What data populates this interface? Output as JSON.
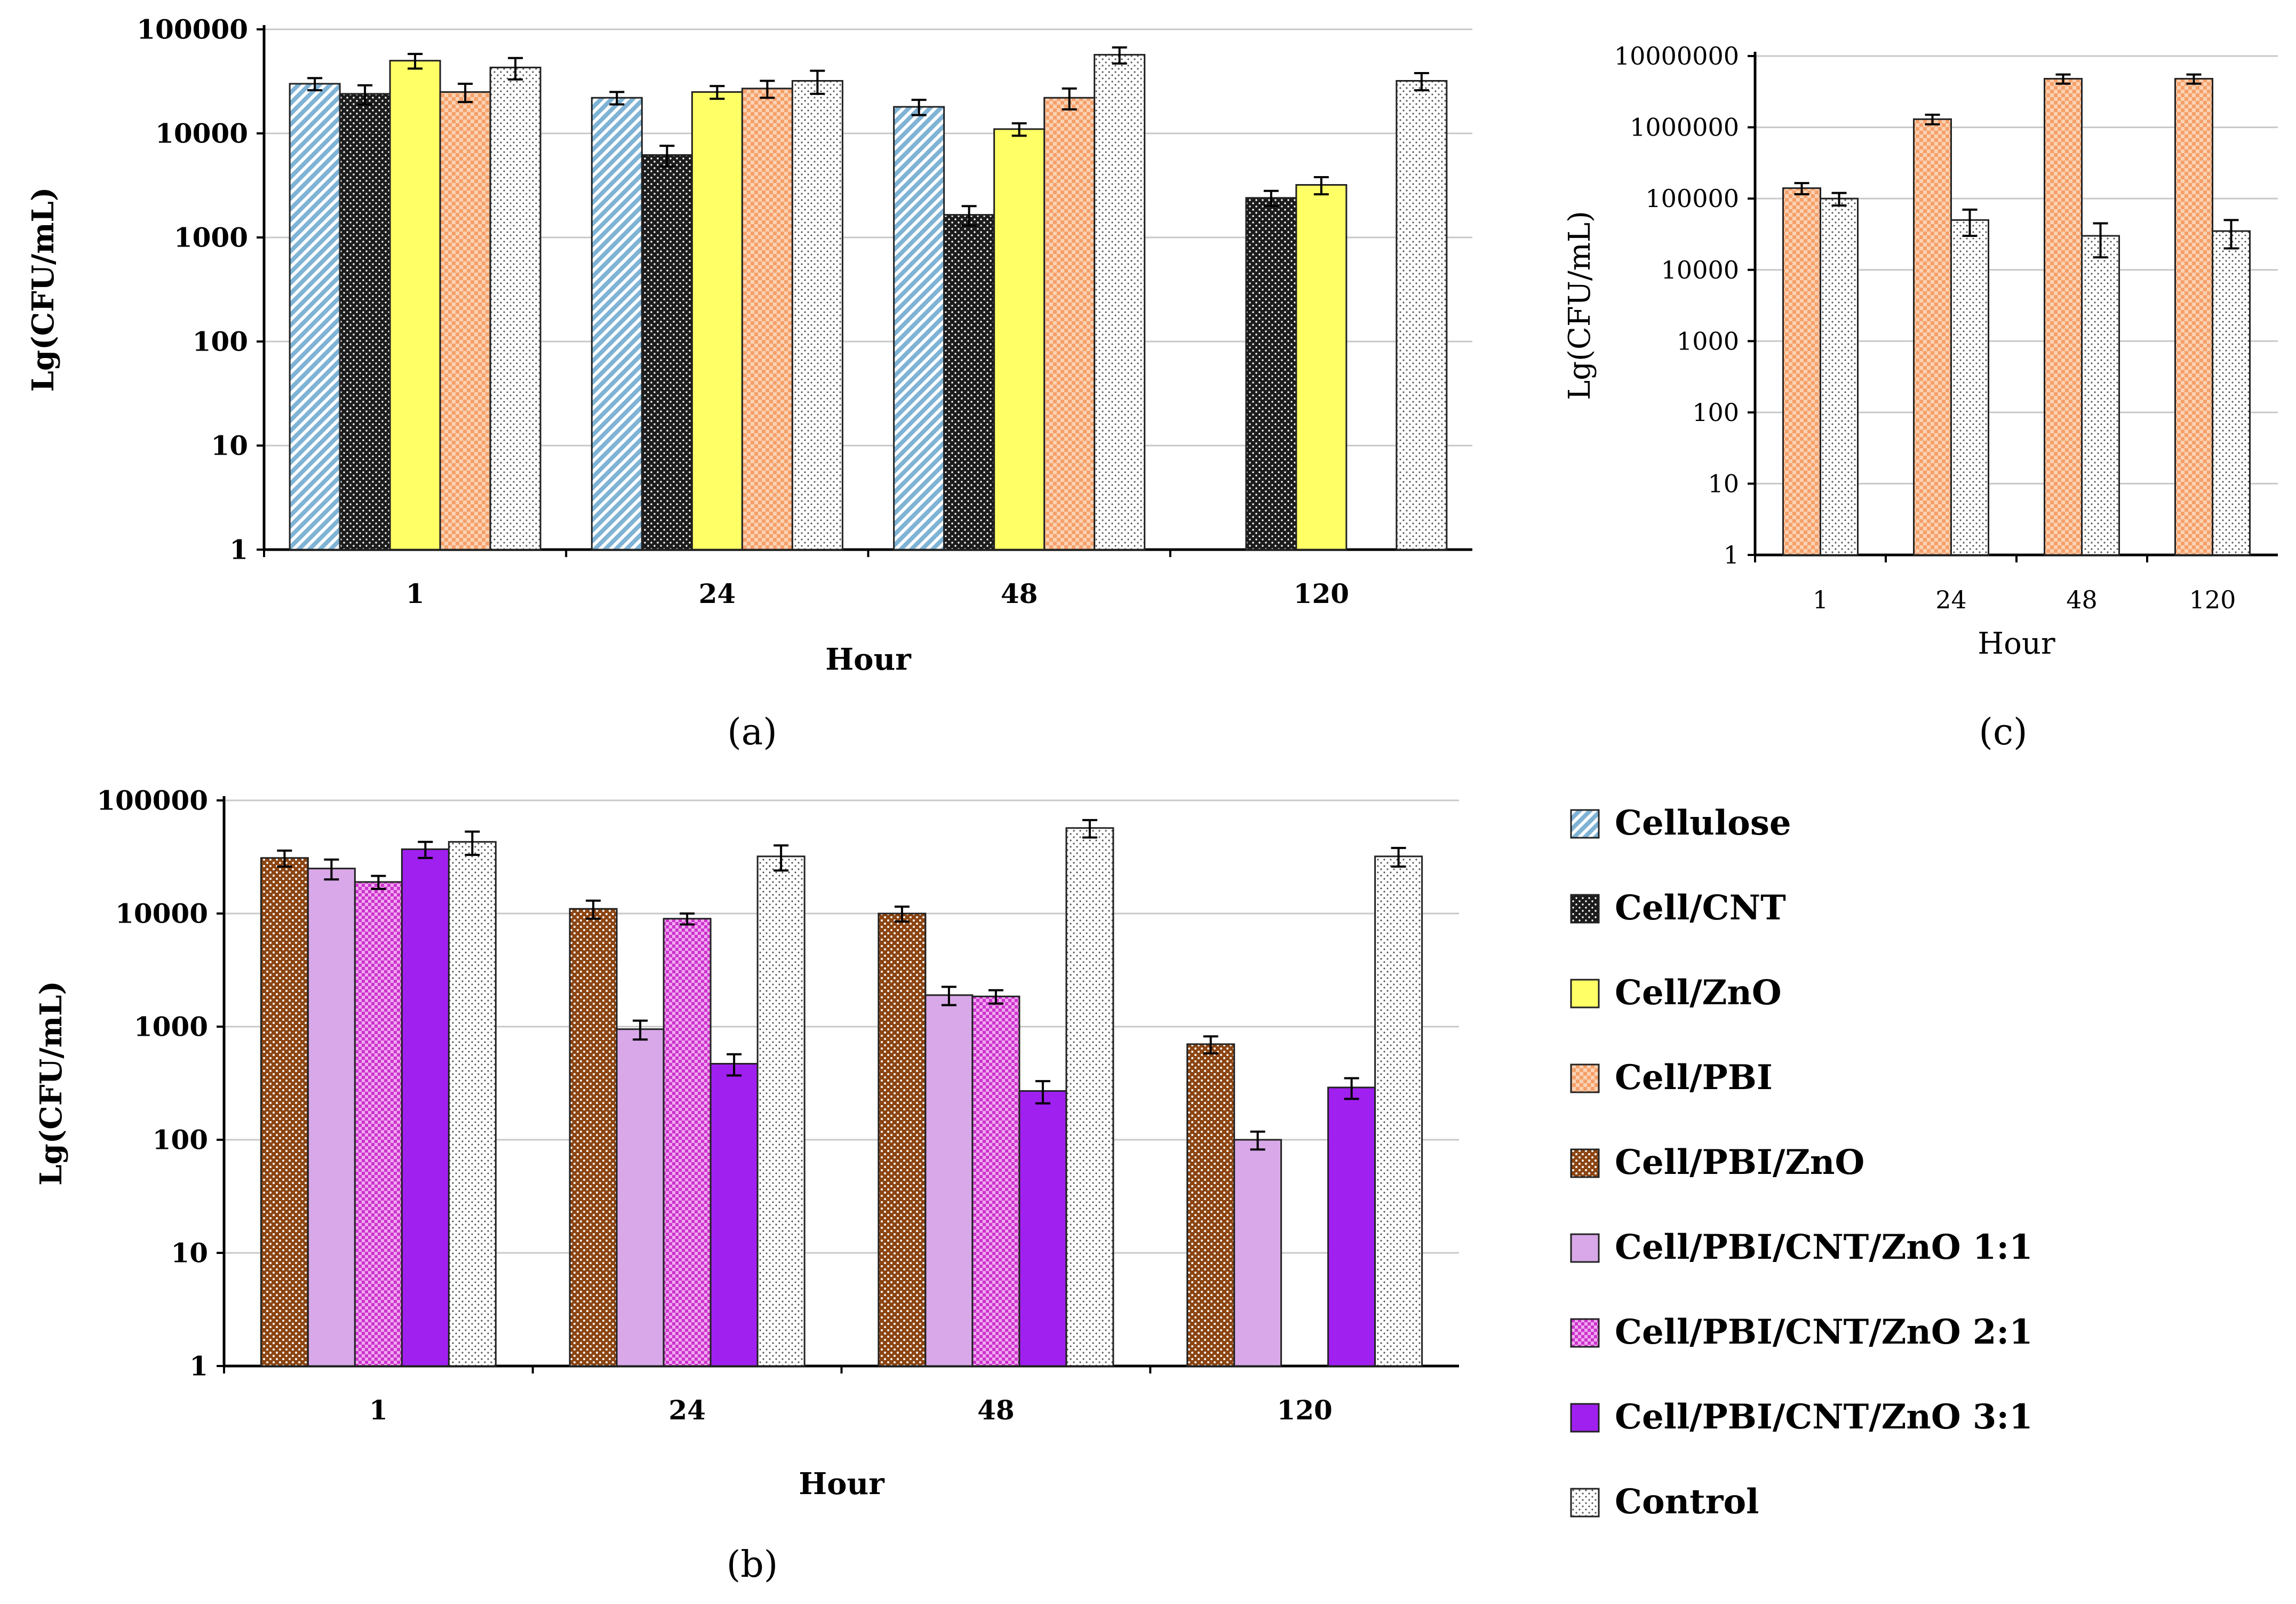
{
  "colors": {
    "cellulose": "#7fb3d5",
    "cell_cnt": "#1c1c1c",
    "cell_zno": "#ffff66",
    "cell_pbi": "#f5a06a",
    "cell_pbi_zno": "#ff9900",
    "cnt_zno_1_1": "#d8a8e8",
    "cnt_zno_2_1": "#cc33cc",
    "cnt_zno_3_1": "#a020f0",
    "control": "#f0f0f0",
    "brown": "#8b4513",
    "grid": "#c8c8c8"
  },
  "legend": [
    {
      "name": "Cellulose",
      "key": "cellulose"
    },
    {
      "name": "Cell/CNT",
      "key": "cell_cnt"
    },
    {
      "name": "Cell/ZnO",
      "key": "cell_zno"
    },
    {
      "name": "Cell/PBI",
      "key": "cell_pbi"
    },
    {
      "name": "Cell/PBI/ZnO",
      "key": "cell_pbi_zno"
    },
    {
      "name": "Cell/PBI/CNT/ZnO 1:1",
      "key": "cnt_zno_1_1"
    },
    {
      "name": "Cell/PBI/CNT/ZnO 2:1",
      "key": "cnt_zno_2_1"
    },
    {
      "name": "Cell/PBI/CNT/ZnO 3:1",
      "key": "cnt_zno_3_1"
    },
    {
      "name": "Control",
      "key": "control"
    }
  ],
  "chart_data": [
    {
      "id": "a",
      "panel_label": "(a)",
      "type": "bar",
      "yscale": "log",
      "ylim": [
        1,
        100000
      ],
      "yticks": [
        "1",
        "10",
        "100",
        "1000",
        "10000",
        "100000"
      ],
      "xlabel": "Hour",
      "ylabel": "Lg(CFU/mL)",
      "categories": [
        "1",
        "24",
        "48",
        "120"
      ],
      "series": [
        {
          "name": "Cellulose",
          "key": "cellulose",
          "values": [
            30000,
            22000,
            18000,
            null
          ],
          "errors": [
            4000,
            3000,
            3000,
            null
          ]
        },
        {
          "name": "Cell/CNT",
          "key": "cell_cnt",
          "values": [
            24000,
            6200,
            1650,
            2400
          ],
          "errors": [
            5000,
            1400,
            350,
            400
          ]
        },
        {
          "name": "Cell/ZnO",
          "key": "cell_zno",
          "values": [
            50000,
            25000,
            11000,
            3200
          ],
          "errors": [
            8000,
            3500,
            1500,
            600
          ]
        },
        {
          "name": "Cell/PBI",
          "key": "cell_pbi",
          "values": [
            25000,
            27000,
            22000,
            null
          ],
          "errors": [
            5000,
            5000,
            5000,
            null
          ]
        },
        {
          "name": "Control",
          "key": "control",
          "values": [
            43000,
            32000,
            57000,
            32000
          ],
          "errors": [
            10000,
            8000,
            10000,
            6000
          ]
        }
      ]
    },
    {
      "id": "b",
      "panel_label": "(b)",
      "type": "bar",
      "yscale": "log",
      "ylim": [
        1,
        100000
      ],
      "yticks": [
        "1",
        "10",
        "100",
        "1000",
        "10000",
        "100000"
      ],
      "xlabel": "Hour",
      "ylabel": "Lg(CFU/mL)",
      "categories": [
        "1",
        "24",
        "48",
        "120"
      ],
      "series": [
        {
          "name": "Cell/PBI/ZnO",
          "key": "cell_pbi_zno",
          "values": [
            31000,
            11000,
            10000,
            700
          ],
          "errors": [
            5000,
            2000,
            1500,
            120
          ]
        },
        {
          "name": "Cell/PBI/CNT/ZnO 1:1",
          "key": "cnt_zno_1_1",
          "values": [
            25000,
            950,
            1900,
            100
          ],
          "errors": [
            5000,
            180,
            350,
            18
          ]
        },
        {
          "name": "Cell/PBI/CNT/ZnO 2:1",
          "key": "cnt_zno_2_1",
          "values": [
            19000,
            9000,
            1850,
            null
          ],
          "errors": [
            2500,
            1000,
            250,
            null
          ]
        },
        {
          "name": "Cell/PBI/CNT/ZnO 3:1",
          "key": "cnt_zno_3_1",
          "values": [
            37000,
            470,
            270,
            290
          ],
          "errors": [
            6000,
            100,
            60,
            60
          ]
        },
        {
          "name": "Control",
          "key": "control",
          "values": [
            43000,
            32000,
            57000,
            32000
          ],
          "errors": [
            10000,
            8000,
            10000,
            6000
          ]
        }
      ]
    },
    {
      "id": "c",
      "panel_label": "(c)",
      "type": "bar",
      "yscale": "log",
      "ylim": [
        1,
        10000000
      ],
      "yticks": [
        "1",
        "10",
        "100",
        "1000",
        "10000",
        "100000",
        "1000000",
        "10000000"
      ],
      "xlabel": "Hour",
      "ylabel": "Lg(CFU/mL)",
      "categories": [
        "1",
        "24",
        "48",
        "120"
      ],
      "series": [
        {
          "name": "Cell/PBI",
          "key": "cell_pbi",
          "values": [
            140000,
            1300000,
            4800000,
            4800000
          ],
          "errors": [
            25000,
            200000,
            700000,
            700000
          ]
        },
        {
          "name": "Control",
          "key": "control",
          "values": [
            100000,
            50000,
            30000,
            35000
          ],
          "errors": [
            20000,
            20000,
            15000,
            15000
          ]
        }
      ]
    }
  ]
}
